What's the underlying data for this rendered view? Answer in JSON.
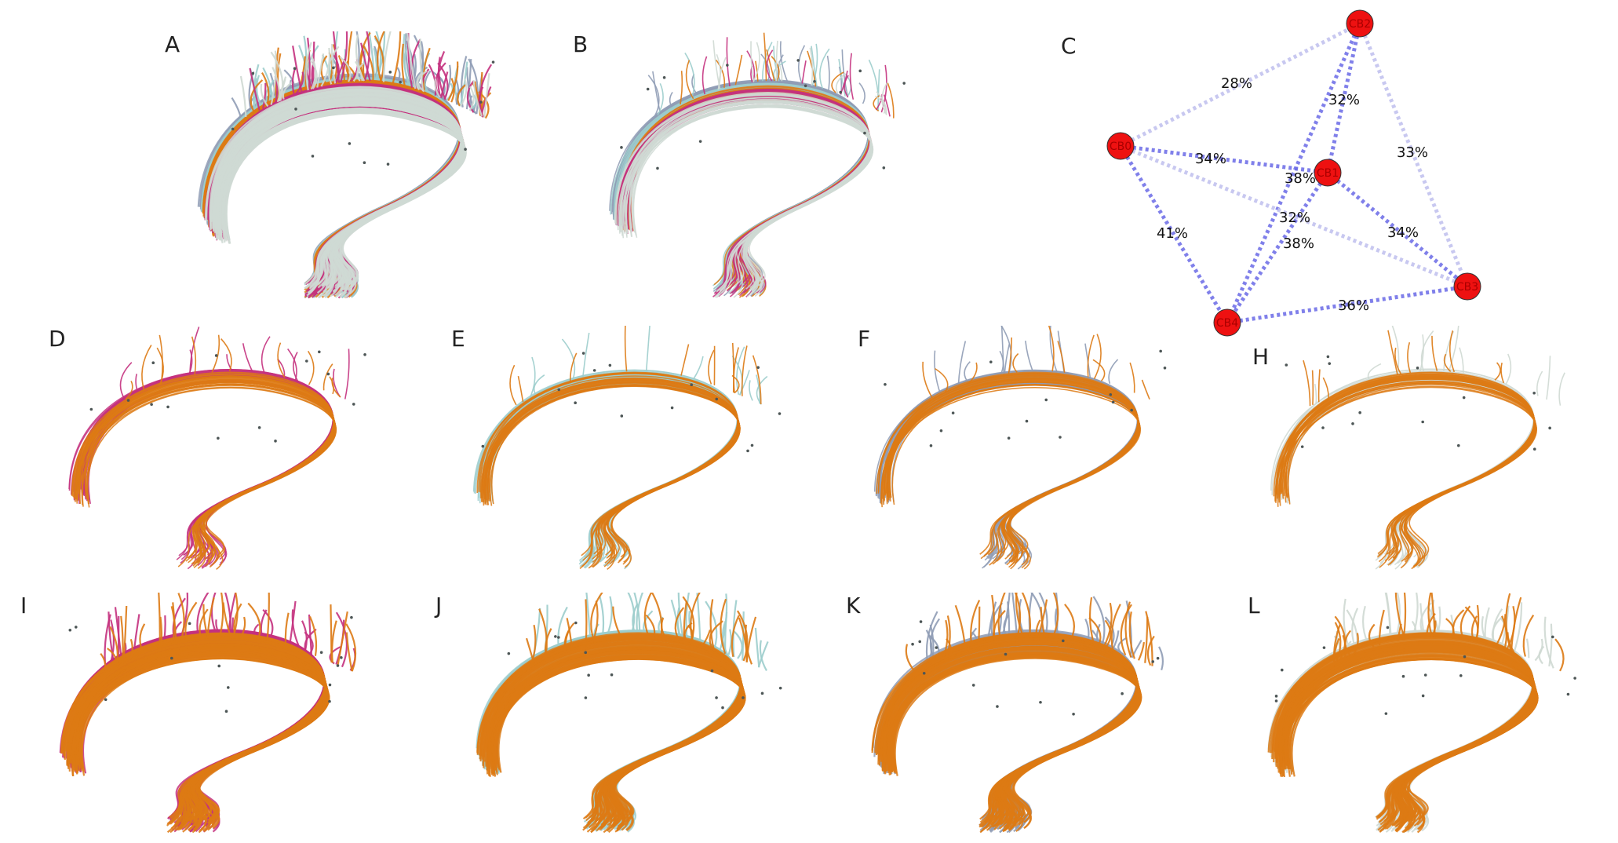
{
  "colors": {
    "orange": "#dd7a14",
    "magenta": "#c4317e",
    "teal": "#9ccdcc",
    "slate": "#8f9cb5",
    "pale": "#cfd9d3",
    "dark": "#4d5656",
    "node_fill": "#ee1111",
    "edge_strong": "#6a6ae6",
    "edge_weak": "#c2c2ee"
  },
  "panels": [
    {
      "letter": "A",
      "colors": [
        "slate",
        "teal",
        "orange",
        "magenta",
        "pale"
      ],
      "density": "dense"
    },
    {
      "letter": "B",
      "colors": [
        "slate",
        "teal",
        "orange",
        "magenta",
        "pale"
      ],
      "density": "sparse"
    },
    {
      "letter": "D",
      "colors": [
        "magenta",
        "orange"
      ],
      "density": "sparse"
    },
    {
      "letter": "E",
      "colors": [
        "teal",
        "orange"
      ],
      "density": "sparse"
    },
    {
      "letter": "F",
      "colors": [
        "slate",
        "orange"
      ],
      "density": "sparse"
    },
    {
      "letter": "H",
      "colors": [
        "pale",
        "orange"
      ],
      "density": "sparse"
    },
    {
      "letter": "I",
      "colors": [
        "magenta",
        "orange"
      ],
      "density": "dense"
    },
    {
      "letter": "J",
      "colors": [
        "teal",
        "orange"
      ],
      "density": "dense"
    },
    {
      "letter": "K",
      "colors": [
        "slate",
        "orange"
      ],
      "density": "dense"
    },
    {
      "letter": "L",
      "colors": [
        "pale",
        "orange"
      ],
      "density": "dense"
    }
  ],
  "graph": {
    "letter": "C",
    "nodes": [
      {
        "id": "CB0",
        "label": "CB0"
      },
      {
        "id": "CB1",
        "label": "CB1"
      },
      {
        "id": "CB2",
        "label": "CB2"
      },
      {
        "id": "CB3",
        "label": "CB3"
      },
      {
        "id": "CB4",
        "label": "CB4"
      }
    ],
    "edges": [
      {
        "from": "CB0",
        "to": "CB2",
        "label": "28%",
        "strength": "weak"
      },
      {
        "from": "CB2",
        "to": "CB1",
        "label": "32%",
        "strength": "strong"
      },
      {
        "from": "CB2",
        "to": "CB3",
        "label": "33%",
        "strength": "weak"
      },
      {
        "from": "CB0",
        "to": "CB1",
        "label": "34%",
        "strength": "strong"
      },
      {
        "from": "CB2",
        "to": "CB4",
        "label": "38%",
        "strength": "strong"
      },
      {
        "from": "CB0",
        "to": "CB3",
        "label": "32%",
        "strength": "weak"
      },
      {
        "from": "CB1",
        "to": "CB3",
        "label": "34%",
        "strength": "strong"
      },
      {
        "from": "CB0",
        "to": "CB4",
        "label": "41%",
        "strength": "strong"
      },
      {
        "from": "CB1",
        "to": "CB4",
        "label": "38%",
        "strength": "strong"
      },
      {
        "from": "CB4",
        "to": "CB3",
        "label": "36%",
        "strength": "strong"
      }
    ]
  }
}
